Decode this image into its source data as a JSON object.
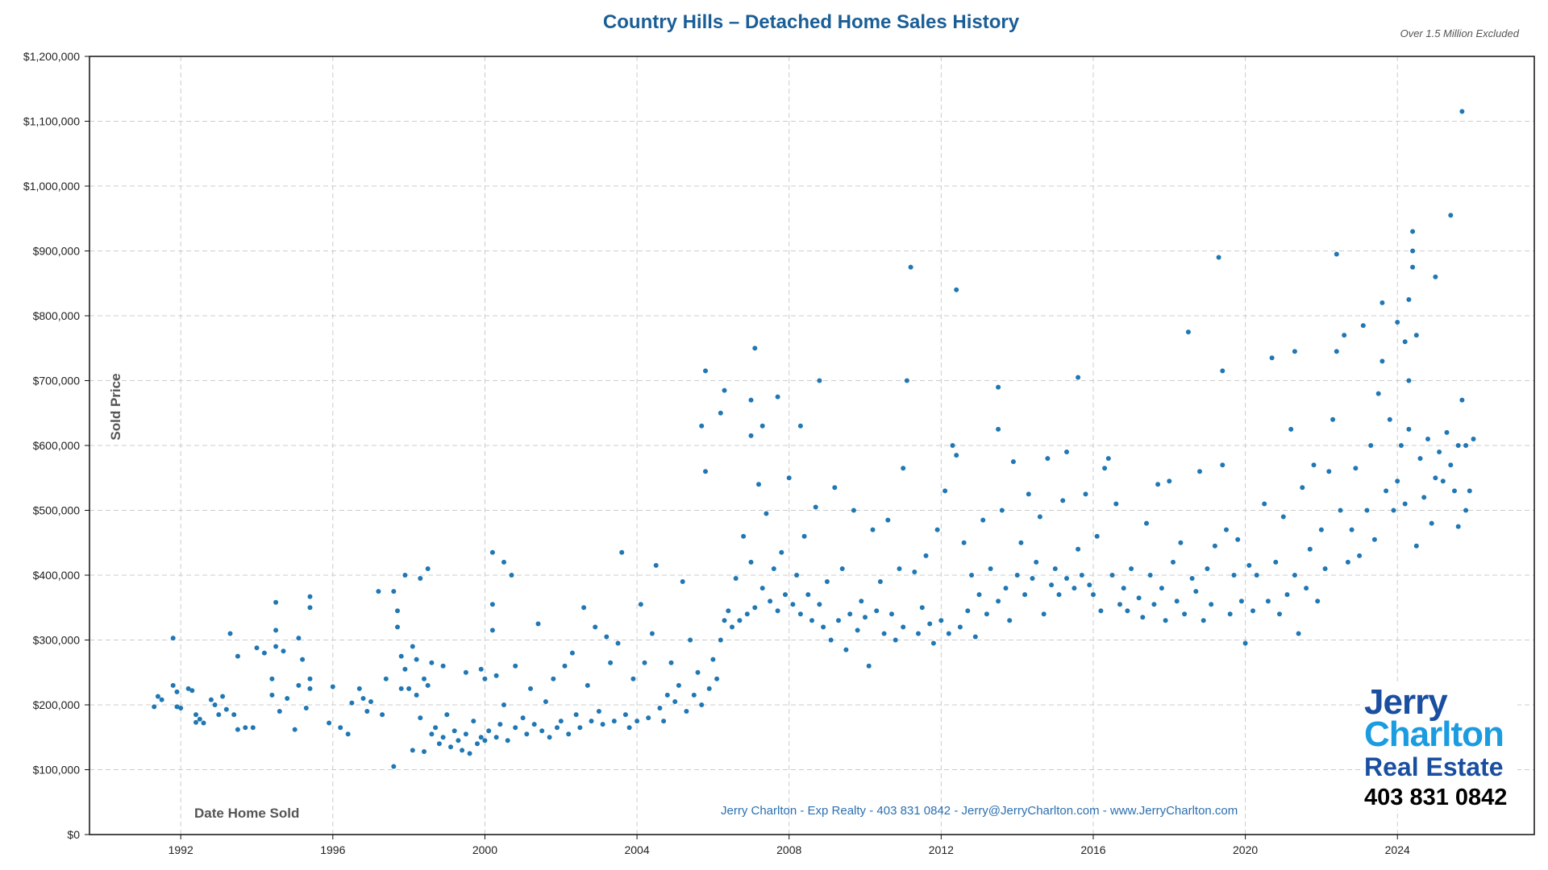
{
  "chart_data": {
    "type": "scatter",
    "title": "Country Hills – Detached Home Sales History",
    "subtitle": "Over 1.5 Million Excluded",
    "xlabel": "Date Home Sold",
    "ylabel": "Sold Price",
    "xlim": [
      1989.6,
      2027.6
    ],
    "ylim": [
      0,
      1200000
    ],
    "grid": true,
    "color": "#1f77b4",
    "xticks": [
      1992,
      1996,
      2000,
      2004,
      2008,
      2012,
      2016,
      2020,
      2024
    ],
    "xtick_labels": [
      "1992",
      "1996",
      "2000",
      "2004",
      "2008",
      "2012",
      "2016",
      "2020",
      "2024"
    ],
    "yticks": [
      0,
      100000,
      200000,
      300000,
      400000,
      500000,
      600000,
      700000,
      800000,
      900000,
      1000000,
      1100000,
      1200000
    ],
    "ytick_labels": [
      "$0",
      "$100,000",
      "$200,000",
      "$300,000",
      "$400,000",
      "$500,000",
      "$600,000",
      "$700,000",
      "$800,000",
      "$900,000",
      "$1,000,000",
      "$1,100,000",
      "$1,200,000"
    ],
    "points": [
      [
        1991.3,
        197000
      ],
      [
        1991.4,
        213000
      ],
      [
        1991.5,
        208000
      ],
      [
        1991.8,
        230000
      ],
      [
        1991.8,
        303000
      ],
      [
        1991.9,
        220000
      ],
      [
        1991.9,
        197000
      ],
      [
        1992.0,
        195000
      ],
      [
        1992.2,
        225000
      ],
      [
        1992.3,
        222000
      ],
      [
        1992.4,
        185000
      ],
      [
        1992.4,
        173000
      ],
      [
        1992.5,
        178000
      ],
      [
        1992.6,
        172000
      ],
      [
        1992.8,
        208000
      ],
      [
        1992.9,
        200000
      ],
      [
        1993.0,
        185000
      ],
      [
        1993.1,
        213000
      ],
      [
        1993.2,
        193000
      ],
      [
        1993.3,
        310000
      ],
      [
        1993.4,
        185000
      ],
      [
        1993.5,
        275000
      ],
      [
        1993.5,
        162000
      ],
      [
        1993.7,
        165000
      ],
      [
        1993.9,
        165000
      ],
      [
        1994.0,
        288000
      ],
      [
        1994.2,
        280000
      ],
      [
        1994.4,
        215000
      ],
      [
        1994.4,
        240000
      ],
      [
        1994.5,
        358000
      ],
      [
        1994.5,
        315000
      ],
      [
        1994.5,
        290000
      ],
      [
        1994.6,
        190000
      ],
      [
        1994.7,
        283000
      ],
      [
        1994.8,
        210000
      ],
      [
        1995.0,
        162000
      ],
      [
        1995.1,
        303000
      ],
      [
        1995.1,
        230000
      ],
      [
        1995.2,
        270000
      ],
      [
        1995.3,
        195000
      ],
      [
        1995.4,
        367000
      ],
      [
        1995.4,
        350000
      ],
      [
        1995.4,
        240000
      ],
      [
        1995.4,
        225000
      ],
      [
        1995.9,
        172000
      ],
      [
        1996.0,
        228000
      ],
      [
        1996.2,
        165000
      ],
      [
        1996.4,
        155000
      ],
      [
        1996.5,
        203000
      ],
      [
        1996.7,
        225000
      ],
      [
        1996.8,
        210000
      ],
      [
        1996.9,
        190000
      ],
      [
        1997.0,
        205000
      ],
      [
        1997.2,
        375000
      ],
      [
        1997.3,
        185000
      ],
      [
        1997.4,
        240000
      ],
      [
        1997.6,
        105000
      ],
      [
        1997.6,
        375000
      ],
      [
        1997.7,
        320000
      ],
      [
        1997.7,
        345000
      ],
      [
        1997.8,
        225000
      ],
      [
        1997.8,
        275000
      ],
      [
        1997.9,
        400000
      ],
      [
        1997.9,
        255000
      ],
      [
        1998.0,
        225000
      ],
      [
        1998.1,
        130000
      ],
      [
        1998.1,
        290000
      ],
      [
        1998.2,
        270000
      ],
      [
        1998.2,
        215000
      ],
      [
        1998.3,
        395000
      ],
      [
        1998.3,
        180000
      ],
      [
        1998.4,
        240000
      ],
      [
        1998.4,
        128000
      ],
      [
        1998.5,
        410000
      ],
      [
        1998.5,
        230000
      ],
      [
        1998.6,
        265000
      ],
      [
        1998.6,
        155000
      ],
      [
        1998.7,
        165000
      ],
      [
        1998.8,
        140000
      ],
      [
        1998.9,
        260000
      ],
      [
        1998.9,
        150000
      ],
      [
        1999.0,
        185000
      ],
      [
        1999.1,
        135000
      ],
      [
        1999.2,
        160000
      ],
      [
        1999.3,
        145000
      ],
      [
        1999.4,
        130000
      ],
      [
        1999.5,
        250000
      ],
      [
        1999.5,
        155000
      ],
      [
        1999.6,
        125000
      ],
      [
        1999.7,
        175000
      ],
      [
        1999.8,
        140000
      ],
      [
        1999.9,
        255000
      ],
      [
        1999.9,
        150000
      ],
      [
        2000.0,
        240000
      ],
      [
        2000.0,
        145000
      ],
      [
        2000.1,
        160000
      ],
      [
        2000.2,
        435000
      ],
      [
        2000.2,
        355000
      ],
      [
        2000.2,
        315000
      ],
      [
        2000.3,
        245000
      ],
      [
        2000.3,
        150000
      ],
      [
        2000.4,
        170000
      ],
      [
        2000.5,
        420000
      ],
      [
        2000.5,
        200000
      ],
      [
        2000.6,
        145000
      ],
      [
        2000.7,
        400000
      ],
      [
        2000.8,
        260000
      ],
      [
        2000.8,
        165000
      ],
      [
        2001.0,
        180000
      ],
      [
        2001.1,
        155000
      ],
      [
        2001.2,
        225000
      ],
      [
        2001.3,
        170000
      ],
      [
        2001.4,
        325000
      ],
      [
        2001.5,
        160000
      ],
      [
        2001.6,
        205000
      ],
      [
        2001.7,
        150000
      ],
      [
        2001.8,
        240000
      ],
      [
        2001.9,
        165000
      ],
      [
        2002.0,
        175000
      ],
      [
        2002.1,
        260000
      ],
      [
        2002.2,
        155000
      ],
      [
        2002.3,
        280000
      ],
      [
        2002.4,
        185000
      ],
      [
        2002.5,
        165000
      ],
      [
        2002.6,
        350000
      ],
      [
        2002.7,
        230000
      ],
      [
        2002.8,
        175000
      ],
      [
        2002.9,
        320000
      ],
      [
        2003.0,
        190000
      ],
      [
        2003.1,
        170000
      ],
      [
        2003.2,
        305000
      ],
      [
        2003.3,
        265000
      ],
      [
        2003.4,
        175000
      ],
      [
        2003.5,
        295000
      ],
      [
        2003.6,
        435000
      ],
      [
        2003.7,
        185000
      ],
      [
        2003.8,
        165000
      ],
      [
        2003.9,
        240000
      ],
      [
        2004.0,
        175000
      ],
      [
        2004.1,
        355000
      ],
      [
        2004.2,
        265000
      ],
      [
        2004.3,
        180000
      ],
      [
        2004.4,
        310000
      ],
      [
        2004.5,
        415000
      ],
      [
        2004.6,
        195000
      ],
      [
        2004.7,
        175000
      ],
      [
        2004.8,
        215000
      ],
      [
        2004.9,
        265000
      ],
      [
        2005.0,
        205000
      ],
      [
        2005.1,
        230000
      ],
      [
        2005.2,
        390000
      ],
      [
        2005.3,
        190000
      ],
      [
        2005.4,
        300000
      ],
      [
        2005.5,
        215000
      ],
      [
        2005.6,
        250000
      ],
      [
        2005.7,
        630000
      ],
      [
        2005.7,
        200000
      ],
      [
        2005.8,
        715000
      ],
      [
        2005.8,
        560000
      ],
      [
        2005.9,
        225000
      ],
      [
        2006.0,
        270000
      ],
      [
        2006.1,
        240000
      ],
      [
        2006.2,
        300000
      ],
      [
        2006.2,
        650000
      ],
      [
        2006.3,
        330000
      ],
      [
        2006.3,
        685000
      ],
      [
        2006.4,
        345000
      ],
      [
        2006.5,
        320000
      ],
      [
        2006.6,
        395000
      ],
      [
        2006.7,
        330000
      ],
      [
        2006.8,
        460000
      ],
      [
        2006.9,
        340000
      ],
      [
        2007.0,
        670000
      ],
      [
        2007.0,
        615000
      ],
      [
        2007.0,
        420000
      ],
      [
        2007.1,
        750000
      ],
      [
        2007.1,
        350000
      ],
      [
        2007.2,
        540000
      ],
      [
        2007.3,
        630000
      ],
      [
        2007.3,
        380000
      ],
      [
        2007.4,
        495000
      ],
      [
        2007.5,
        360000
      ],
      [
        2007.6,
        410000
      ],
      [
        2007.7,
        675000
      ],
      [
        2007.7,
        345000
      ],
      [
        2007.8,
        435000
      ],
      [
        2007.9,
        370000
      ],
      [
        2008.0,
        550000
      ],
      [
        2008.1,
        355000
      ],
      [
        2008.2,
        400000
      ],
      [
        2008.3,
        630000
      ],
      [
        2008.3,
        340000
      ],
      [
        2008.4,
        460000
      ],
      [
        2008.5,
        370000
      ],
      [
        2008.6,
        330000
      ],
      [
        2008.7,
        505000
      ],
      [
        2008.8,
        700000
      ],
      [
        2008.8,
        355000
      ],
      [
        2008.9,
        320000
      ],
      [
        2009.0,
        390000
      ],
      [
        2009.1,
        300000
      ],
      [
        2009.2,
        535000
      ],
      [
        2009.3,
        330000
      ],
      [
        2009.4,
        410000
      ],
      [
        2009.5,
        285000
      ],
      [
        2009.6,
        340000
      ],
      [
        2009.7,
        500000
      ],
      [
        2009.8,
        315000
      ],
      [
        2009.9,
        360000
      ],
      [
        2010.0,
        335000
      ],
      [
        2010.1,
        260000
      ],
      [
        2010.2,
        470000
      ],
      [
        2010.3,
        345000
      ],
      [
        2010.4,
        390000
      ],
      [
        2010.5,
        310000
      ],
      [
        2010.6,
        485000
      ],
      [
        2010.7,
        340000
      ],
      [
        2010.8,
        300000
      ],
      [
        2010.9,
        410000
      ],
      [
        2011.0,
        565000
      ],
      [
        2011.0,
        320000
      ],
      [
        2011.1,
        700000
      ],
      [
        2011.2,
        875000
      ],
      [
        2011.3,
        405000
      ],
      [
        2011.4,
        310000
      ],
      [
        2011.5,
        350000
      ],
      [
        2011.6,
        430000
      ],
      [
        2011.7,
        325000
      ],
      [
        2011.8,
        295000
      ],
      [
        2011.9,
        470000
      ],
      [
        2012.0,
        330000
      ],
      [
        2012.1,
        530000
      ],
      [
        2012.2,
        310000
      ],
      [
        2012.3,
        600000
      ],
      [
        2012.4,
        840000
      ],
      [
        2012.4,
        585000
      ],
      [
        2012.5,
        320000
      ],
      [
        2012.6,
        450000
      ],
      [
        2012.7,
        345000
      ],
      [
        2012.8,
        400000
      ],
      [
        2012.9,
        305000
      ],
      [
        2013.0,
        370000
      ],
      [
        2013.1,
        485000
      ],
      [
        2013.2,
        340000
      ],
      [
        2013.3,
        410000
      ],
      [
        2013.5,
        690000
      ],
      [
        2013.5,
        625000
      ],
      [
        2013.5,
        360000
      ],
      [
        2013.6,
        500000
      ],
      [
        2013.7,
        380000
      ],
      [
        2013.8,
        330000
      ],
      [
        2013.9,
        575000
      ],
      [
        2014.0,
        400000
      ],
      [
        2014.1,
        450000
      ],
      [
        2014.2,
        370000
      ],
      [
        2014.3,
        525000
      ],
      [
        2014.4,
        395000
      ],
      [
        2014.5,
        420000
      ],
      [
        2014.6,
        490000
      ],
      [
        2014.7,
        340000
      ],
      [
        2014.8,
        580000
      ],
      [
        2014.9,
        385000
      ],
      [
        2015.0,
        410000
      ],
      [
        2015.1,
        370000
      ],
      [
        2015.2,
        515000
      ],
      [
        2015.3,
        590000
      ],
      [
        2015.3,
        395000
      ],
      [
        2015.5,
        380000
      ],
      [
        2015.6,
        705000
      ],
      [
        2015.6,
        440000
      ],
      [
        2015.7,
        400000
      ],
      [
        2015.8,
        525000
      ],
      [
        2015.9,
        385000
      ],
      [
        2016.0,
        370000
      ],
      [
        2016.1,
        460000
      ],
      [
        2016.2,
        345000
      ],
      [
        2016.3,
        565000
      ],
      [
        2016.4,
        580000
      ],
      [
        2016.5,
        400000
      ],
      [
        2016.6,
        510000
      ],
      [
        2016.7,
        355000
      ],
      [
        2016.8,
        380000
      ],
      [
        2016.9,
        345000
      ],
      [
        2017.0,
        410000
      ],
      [
        2017.2,
        365000
      ],
      [
        2017.3,
        335000
      ],
      [
        2017.4,
        480000
      ],
      [
        2017.5,
        400000
      ],
      [
        2017.6,
        355000
      ],
      [
        2017.7,
        540000
      ],
      [
        2017.8,
        380000
      ],
      [
        2017.9,
        330000
      ],
      [
        2018.0,
        545000
      ],
      [
        2018.1,
        420000
      ],
      [
        2018.2,
        360000
      ],
      [
        2018.3,
        450000
      ],
      [
        2018.4,
        340000
      ],
      [
        2018.5,
        775000
      ],
      [
        2018.6,
        395000
      ],
      [
        2018.7,
        375000
      ],
      [
        2018.8,
        560000
      ],
      [
        2018.9,
        330000
      ],
      [
        2019.0,
        410000
      ],
      [
        2019.1,
        355000
      ],
      [
        2019.2,
        445000
      ],
      [
        2019.3,
        890000
      ],
      [
        2019.4,
        715000
      ],
      [
        2019.4,
        570000
      ],
      [
        2019.5,
        470000
      ],
      [
        2019.6,
        340000
      ],
      [
        2019.7,
        400000
      ],
      [
        2019.8,
        455000
      ],
      [
        2019.9,
        360000
      ],
      [
        2020.0,
        295000
      ],
      [
        2020.1,
        415000
      ],
      [
        2020.2,
        345000
      ],
      [
        2020.3,
        400000
      ],
      [
        2020.5,
        510000
      ],
      [
        2020.6,
        360000
      ],
      [
        2020.7,
        735000
      ],
      [
        2020.8,
        420000
      ],
      [
        2020.9,
        340000
      ],
      [
        2021.0,
        490000
      ],
      [
        2021.1,
        370000
      ],
      [
        2021.2,
        625000
      ],
      [
        2021.3,
        745000
      ],
      [
        2021.3,
        400000
      ],
      [
        2021.4,
        310000
      ],
      [
        2021.5,
        535000
      ],
      [
        2021.6,
        380000
      ],
      [
        2021.7,
        440000
      ],
      [
        2021.8,
        570000
      ],
      [
        2021.9,
        360000
      ],
      [
        2022.0,
        470000
      ],
      [
        2022.1,
        410000
      ],
      [
        2022.2,
        560000
      ],
      [
        2022.3,
        640000
      ],
      [
        2022.4,
        895000
      ],
      [
        2022.4,
        745000
      ],
      [
        2022.5,
        500000
      ],
      [
        2022.6,
        770000
      ],
      [
        2022.7,
        420000
      ],
      [
        2022.8,
        470000
      ],
      [
        2022.9,
        565000
      ],
      [
        2023.0,
        430000
      ],
      [
        2023.1,
        785000
      ],
      [
        2023.2,
        500000
      ],
      [
        2023.3,
        600000
      ],
      [
        2023.4,
        455000
      ],
      [
        2023.5,
        680000
      ],
      [
        2023.6,
        820000
      ],
      [
        2023.6,
        730000
      ],
      [
        2023.7,
        530000
      ],
      [
        2023.8,
        640000
      ],
      [
        2023.9,
        500000
      ],
      [
        2024.0,
        545000
      ],
      [
        2024.0,
        790000
      ],
      [
        2024.1,
        600000
      ],
      [
        2024.2,
        510000
      ],
      [
        2024.2,
        760000
      ],
      [
        2024.3,
        700000
      ],
      [
        2024.3,
        825000
      ],
      [
        2024.3,
        625000
      ],
      [
        2024.4,
        900000
      ],
      [
        2024.4,
        930000
      ],
      [
        2024.4,
        875000
      ],
      [
        2024.5,
        445000
      ],
      [
        2024.5,
        770000
      ],
      [
        2024.6,
        580000
      ],
      [
        2024.7,
        520000
      ],
      [
        2024.8,
        610000
      ],
      [
        2024.9,
        480000
      ],
      [
        2025.0,
        860000
      ],
      [
        2025.0,
        550000
      ],
      [
        2025.1,
        590000
      ],
      [
        2025.2,
        545000
      ],
      [
        2025.3,
        620000
      ],
      [
        2025.4,
        955000
      ],
      [
        2025.4,
        570000
      ],
      [
        2025.5,
        530000
      ],
      [
        2025.6,
        600000
      ],
      [
        2025.6,
        475000
      ],
      [
        2025.7,
        1115000
      ],
      [
        2025.7,
        670000
      ],
      [
        2025.8,
        600000
      ],
      [
        2025.8,
        500000
      ],
      [
        2025.9,
        530000
      ],
      [
        2026.0,
        610000
      ]
    ]
  },
  "footer": "Jerry Charlton - Exp Realty - 403 831 0842 - Jerry@JerryCharlton.com - www.JerryCharlton.com",
  "logo": {
    "line1": "Jerry",
    "line2": "Charlton",
    "line3": "Real Estate",
    "phone": "403 831 0842"
  }
}
